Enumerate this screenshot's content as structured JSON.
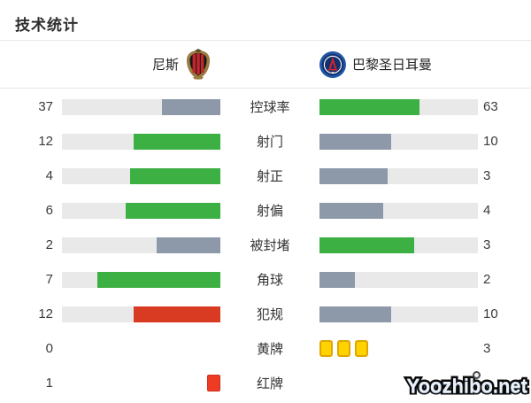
{
  "title": "技术统计",
  "teams": {
    "home": {
      "name": "尼斯",
      "logo": "nice-crest"
    },
    "away": {
      "name": "巴黎圣日耳曼",
      "logo": "psg-crest"
    }
  },
  "colors": {
    "green": "#3cb043",
    "slate": "#8d98a9",
    "red": "#d83a22",
    "track": "#e9e9e9",
    "yellow_fill": "#ffd200",
    "yellow_border": "#dda704",
    "redcard_fill": "#ee3b24",
    "redcard_border": "#c9301c"
  },
  "rows": [
    {
      "type": "bars",
      "label": "控球率",
      "home": "37",
      "away": "63",
      "home_pct": 37,
      "away_pct": 63,
      "home_fill": "slate",
      "away_fill": "green"
    },
    {
      "type": "bars",
      "label": "射门",
      "home": "12",
      "away": "10",
      "home_pct": 54.5,
      "away_pct": 45.5,
      "home_fill": "green",
      "away_fill": "slate"
    },
    {
      "type": "bars",
      "label": "射正",
      "home": "4",
      "away": "3",
      "home_pct": 57.1,
      "away_pct": 42.9,
      "home_fill": "green",
      "away_fill": "slate"
    },
    {
      "type": "bars",
      "label": "射偏",
      "home": "6",
      "away": "4",
      "home_pct": 60,
      "away_pct": 40,
      "home_fill": "green",
      "away_fill": "slate"
    },
    {
      "type": "bars",
      "label": "被封堵",
      "home": "2",
      "away": "3",
      "home_pct": 40,
      "away_pct": 60,
      "home_fill": "slate",
      "away_fill": "green"
    },
    {
      "type": "bars",
      "label": "角球",
      "home": "7",
      "away": "2",
      "home_pct": 77.8,
      "away_pct": 22.2,
      "home_fill": "green",
      "away_fill": "slate"
    },
    {
      "type": "bars",
      "label": "犯规",
      "home": "12",
      "away": "10",
      "home_pct": 54.5,
      "away_pct": 45.5,
      "home_fill": "red",
      "away_fill": "slate"
    },
    {
      "type": "cards",
      "label": "黄牌",
      "home": "0",
      "away": "3",
      "card": "yellow",
      "home_cards": 0,
      "away_cards": 3
    },
    {
      "type": "cards",
      "label": "红牌",
      "home": "1",
      "away": "",
      "card": "red",
      "home_cards": 1,
      "away_cards": 0
    }
  ],
  "watermark": "Yoozhibo.net",
  "chart_data": {
    "type": "bar",
    "title": "技术统计",
    "layout": "mirrored horizontal paired bars, labels centered, values at outer edges",
    "categories": [
      "控球率",
      "射门",
      "射正",
      "射偏",
      "被封堵",
      "角球",
      "犯规",
      "黄牌",
      "红牌"
    ],
    "series": [
      {
        "name": "尼斯",
        "values": [
          37,
          12,
          4,
          6,
          2,
          7,
          12,
          0,
          1
        ]
      },
      {
        "name": "巴黎圣日耳曼",
        "values": [
          63,
          10,
          3,
          4,
          3,
          2,
          10,
          3,
          null
        ]
      }
    ],
    "notes": "bar length = value / (home+away); green = higher side, slate-gray = lower side, fouls bar red, cards drawn as yellow/red card glyphs"
  }
}
